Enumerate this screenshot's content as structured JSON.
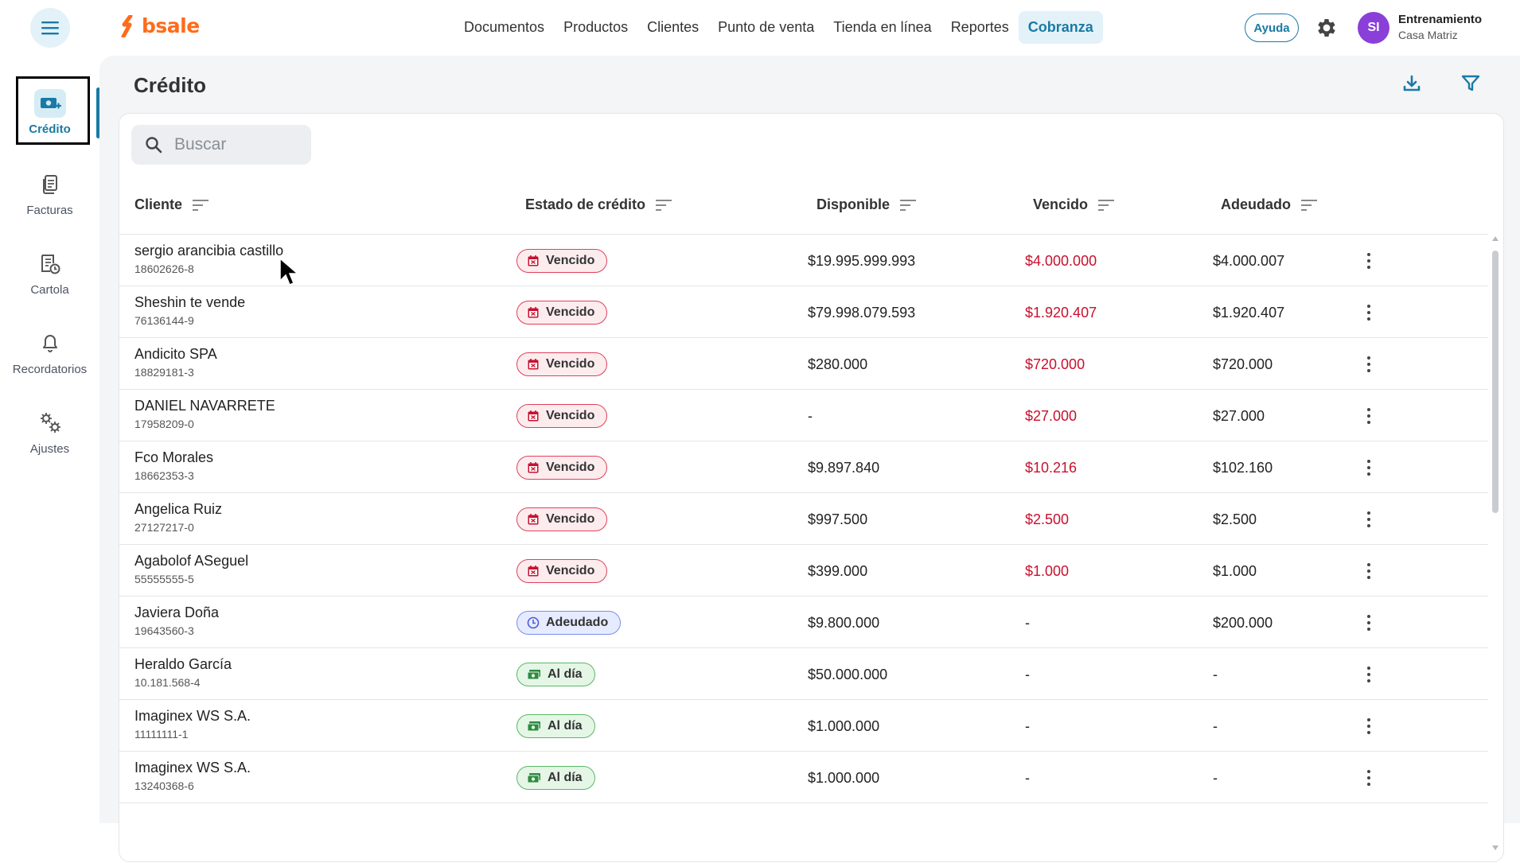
{
  "brand": {
    "name": "bsale",
    "color": "#ff6b1a"
  },
  "nav": [
    {
      "label": "Documentos",
      "active": false
    },
    {
      "label": "Productos",
      "active": false
    },
    {
      "label": "Clientes",
      "active": false
    },
    {
      "label": "Punto de venta",
      "active": false
    },
    {
      "label": "Tienda en línea",
      "active": false
    },
    {
      "label": "Reportes",
      "active": false
    },
    {
      "label": "Cobranza",
      "active": true
    }
  ],
  "header": {
    "help_label": "Ayuda",
    "avatar_initials": "SI",
    "account_name": "Entrenamiento",
    "account_branch": "Casa Matriz"
  },
  "sidebar": [
    {
      "label": "Crédito",
      "icon": "credit-icon",
      "active": true
    },
    {
      "label": "Facturas",
      "icon": "invoices-icon",
      "active": false
    },
    {
      "label": "Cartola",
      "icon": "statement-icon",
      "active": false
    },
    {
      "label": "Recordatorios",
      "icon": "bell-icon",
      "active": false
    },
    {
      "label": "Ajustes",
      "icon": "settings-icon",
      "active": false
    }
  ],
  "page": {
    "title": "Crédito",
    "search_placeholder": "Buscar"
  },
  "table": {
    "columns": [
      "Cliente",
      "Estado de crédito",
      "Disponible",
      "Vencido",
      "Adeudado"
    ],
    "rows": [
      {
        "name": "sergio arancibia castillo",
        "rut": "18602626-8",
        "status": "Vencido",
        "status_type": "overdue",
        "available": "$19.995.999.993",
        "overdue": "$4.000.000",
        "owed": "$4.000.007"
      },
      {
        "name": "Sheshin te vende",
        "rut": "76136144-9",
        "status": "Vencido",
        "status_type": "overdue",
        "available": "$79.998.079.593",
        "overdue": "$1.920.407",
        "owed": "$1.920.407"
      },
      {
        "name": "Andicito SPA",
        "rut": "18829181-3",
        "status": "Vencido",
        "status_type": "overdue",
        "available": "$280.000",
        "overdue": "$720.000",
        "owed": "$720.000"
      },
      {
        "name": "DANIEL NAVARRETE",
        "rut": "17958209-0",
        "status": "Vencido",
        "status_type": "overdue",
        "available": "-",
        "overdue": "$27.000",
        "owed": "$27.000"
      },
      {
        "name": "Fco Morales",
        "rut": "18662353-3",
        "status": "Vencido",
        "status_type": "overdue",
        "available": "$9.897.840",
        "overdue": "$10.216",
        "owed": "$102.160"
      },
      {
        "name": "Angelica Ruiz",
        "rut": "27127217-0",
        "status": "Vencido",
        "status_type": "overdue",
        "available": "$997.500",
        "overdue": "$2.500",
        "owed": "$2.500"
      },
      {
        "name": "Agabolof ASeguel",
        "rut": "55555555-5",
        "status": "Vencido",
        "status_type": "overdue",
        "available": "$399.000",
        "overdue": "$1.000",
        "owed": "$1.000"
      },
      {
        "name": "Javiera Doña",
        "rut": "19643560-3",
        "status": "Adeudado",
        "status_type": "owed",
        "available": "$9.800.000",
        "overdue": "-",
        "owed": "$200.000"
      },
      {
        "name": "Heraldo García",
        "rut": "10.181.568-4",
        "status": "Al día",
        "status_type": "ok",
        "available": "$50.000.000",
        "overdue": "-",
        "owed": "-"
      },
      {
        "name": "Imaginex WS S.A.",
        "rut": "11111111-1",
        "status": "Al día",
        "status_type": "ok",
        "available": "$1.000.000",
        "overdue": "-",
        "owed": "-"
      },
      {
        "name": "Imaginex WS S.A.",
        "rut": "13240368-6",
        "status": "Al día",
        "status_type": "ok",
        "available": "$1.000.000",
        "overdue": "-",
        "owed": "-"
      }
    ]
  },
  "colors": {
    "accent": "#1a7aa5",
    "overdue_red": "#c8102e",
    "avatar": "#8b3fd9"
  }
}
